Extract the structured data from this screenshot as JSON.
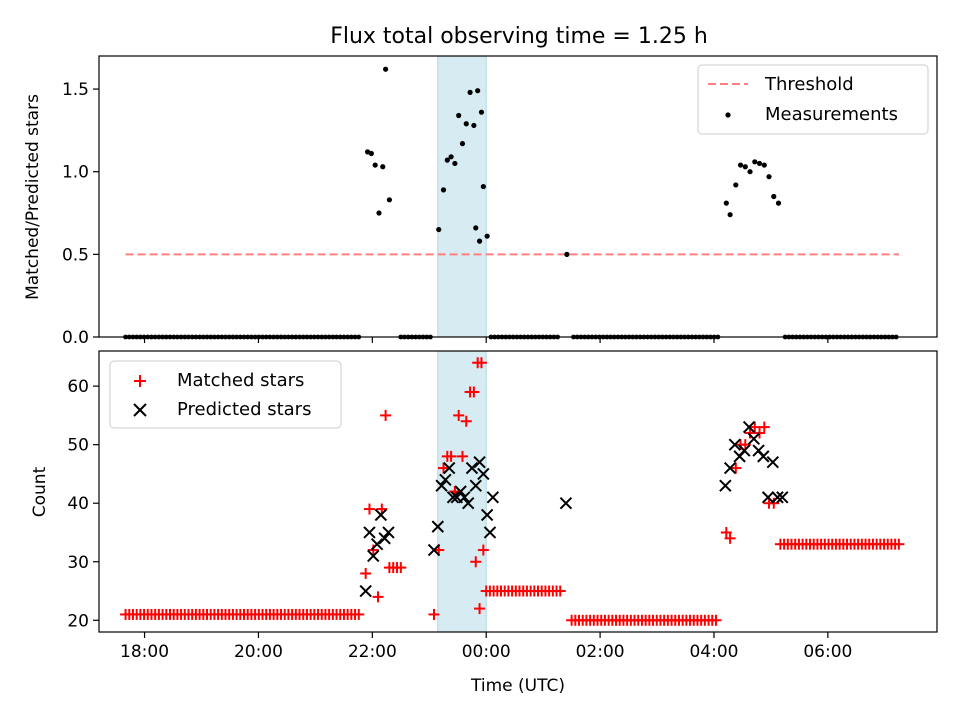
{
  "chart_data": [
    {
      "type": "scatter",
      "title": "Flux total observing time = 1.25 h",
      "xlabel": "",
      "ylabel": "Matched/Predicted stars",
      "xlim": [
        "17:12",
        "07:55"
      ],
      "ylim": [
        0,
        1.7
      ],
      "yticks": [
        0.0,
        0.5,
        1.0,
        1.5
      ],
      "ytick_labels": [
        "0.0",
        "0.5",
        "1.0",
        "1.5"
      ],
      "highlight_span": [
        "23:09",
        "00:00"
      ],
      "legend_position": "upper right",
      "series": [
        {
          "name": "Threshold",
          "style": "dashed-line",
          "color": "#ff7f7f",
          "points": [
            [
              "17:40",
              0.5
            ],
            [
              "07:15",
              0.5
            ]
          ]
        },
        {
          "name": "Measurements",
          "style": "dot",
          "color": "#000000",
          "points": [
            [
              "21:55",
              1.12
            ],
            [
              "21:59",
              1.11
            ],
            [
              "22:03",
              1.04
            ],
            [
              "22:07",
              0.75
            ],
            [
              "22:11",
              1.03
            ],
            [
              "22:14",
              1.62
            ],
            [
              "22:18",
              0.83
            ],
            [
              "23:10",
              0.65
            ],
            [
              "23:15",
              0.89
            ],
            [
              "23:19",
              1.07
            ],
            [
              "23:23",
              1.09
            ],
            [
              "23:27",
              1.05
            ],
            [
              "23:31",
              1.34
            ],
            [
              "23:35",
              1.17
            ],
            [
              "23:39",
              1.29
            ],
            [
              "23:43",
              1.48
            ],
            [
              "23:47",
              1.28
            ],
            [
              "23:51",
              1.49
            ],
            [
              "23:55",
              1.36
            ],
            [
              "23:49",
              0.66
            ],
            [
              "23:53",
              0.58
            ],
            [
              "23:57",
              0.91
            ],
            [
              "00:01",
              0.61
            ],
            [
              "01:25",
              0.5
            ],
            [
              "04:13",
              0.81
            ],
            [
              "04:17",
              0.74
            ],
            [
              "04:23",
              0.92
            ],
            [
              "04:28",
              1.04
            ],
            [
              "04:33",
              1.03
            ],
            [
              "04:38",
              1.0
            ],
            [
              "04:43",
              1.06
            ],
            [
              "04:48",
              1.05
            ],
            [
              "04:53",
              1.04
            ],
            [
              "04:58",
              0.97
            ],
            [
              "05:03",
              0.85
            ],
            [
              "05:08",
              0.81
            ]
          ],
          "zero_runs": [
            [
              "17:40",
              "21:48",
              1.3
            ],
            [
              "22:30",
              "23:05",
              1.3
            ],
            [
              "00:05",
              "01:18",
              1.3
            ],
            [
              "01:32",
              "04:05",
              1.3
            ],
            [
              "05:15",
              "07:15",
              1.3
            ]
          ]
        }
      ]
    },
    {
      "type": "scatter",
      "title": "",
      "xlabel": "Time (UTC)",
      "ylabel": "Count",
      "xlim": [
        "17:12",
        "07:55"
      ],
      "ylim": [
        18,
        66
      ],
      "yticks": [
        20,
        30,
        40,
        50,
        60
      ],
      "ytick_labels": [
        "20",
        "30",
        "40",
        "50",
        "60"
      ],
      "xticks": [
        "18:00",
        "20:00",
        "22:00",
        "00:00",
        "02:00",
        "04:00",
        "06:00"
      ],
      "highlight_span": [
        "23:09",
        "00:00"
      ],
      "legend_position": "upper left",
      "series": [
        {
          "name": "Matched stars",
          "style": "plus",
          "color": "#ff0000",
          "runs": [
            [
              "17:40",
              "21:48",
              21,
              1.3
            ],
            [
              "00:00",
              "01:18",
              25,
              1.3
            ],
            [
              "01:30",
              "04:05",
              20,
              1.3
            ],
            [
              "05:10",
              "07:15",
              33,
              1.3
            ]
          ],
          "points": [
            [
              "21:53",
              28
            ],
            [
              "21:57",
              39
            ],
            [
              "22:01",
              32
            ],
            [
              "22:06",
              24
            ],
            [
              "22:10",
              39
            ],
            [
              "22:14",
              55
            ],
            [
              "22:18",
              29
            ],
            [
              "22:22",
              29
            ],
            [
              "22:26",
              29
            ],
            [
              "22:30",
              29
            ],
            [
              "23:05",
              21
            ],
            [
              "23:10",
              32
            ],
            [
              "23:15",
              46
            ],
            [
              "23:19",
              48
            ],
            [
              "23:23",
              48
            ],
            [
              "23:27",
              42
            ],
            [
              "23:31",
              55
            ],
            [
              "23:35",
              48
            ],
            [
              "23:39",
              54
            ],
            [
              "23:43",
              59
            ],
            [
              "23:47",
              59
            ],
            [
              "23:51",
              64
            ],
            [
              "23:55",
              64
            ],
            [
              "23:49",
              30
            ],
            [
              "23:53",
              22
            ],
            [
              "23:57",
              32
            ],
            [
              "04:13",
              35
            ],
            [
              "04:17",
              34
            ],
            [
              "04:23",
              46
            ],
            [
              "04:28",
              50
            ],
            [
              "04:33",
              50
            ],
            [
              "04:38",
              52
            ],
            [
              "04:43",
              53
            ],
            [
              "04:48",
              52
            ],
            [
              "04:53",
              53
            ],
            [
              "04:58",
              40
            ],
            [
              "05:03",
              40
            ]
          ]
        },
        {
          "name": "Predicted stars",
          "style": "x",
          "color": "#000000",
          "points": [
            [
              "21:53",
              25
            ],
            [
              "21:57",
              35
            ],
            [
              "22:01",
              31
            ],
            [
              "22:05",
              33
            ],
            [
              "22:09",
              38
            ],
            [
              "22:13",
              34
            ],
            [
              "22:17",
              35
            ],
            [
              "23:05",
              32
            ],
            [
              "23:09",
              36
            ],
            [
              "23:13",
              43
            ],
            [
              "23:17",
              44
            ],
            [
              "23:21",
              46
            ],
            [
              "23:25",
              41
            ],
            [
              "23:29",
              41
            ],
            [
              "23:33",
              42
            ],
            [
              "23:37",
              41
            ],
            [
              "23:41",
              40
            ],
            [
              "23:45",
              46
            ],
            [
              "23:49",
              43
            ],
            [
              "23:53",
              47
            ],
            [
              "23:57",
              45
            ],
            [
              "00:01",
              38
            ],
            [
              "00:04",
              35
            ],
            [
              "00:07",
              41
            ],
            [
              "01:24",
              40
            ],
            [
              "04:12",
              43
            ],
            [
              "04:17",
              46
            ],
            [
              "04:22",
              50
            ],
            [
              "04:27",
              48
            ],
            [
              "04:32",
              49
            ],
            [
              "04:37",
              53
            ],
            [
              "04:42",
              51
            ],
            [
              "04:47",
              49
            ],
            [
              "04:52",
              48
            ],
            [
              "04:57",
              41
            ],
            [
              "05:02",
              47
            ],
            [
              "05:07",
              41
            ],
            [
              "05:12",
              41
            ]
          ]
        }
      ]
    }
  ]
}
